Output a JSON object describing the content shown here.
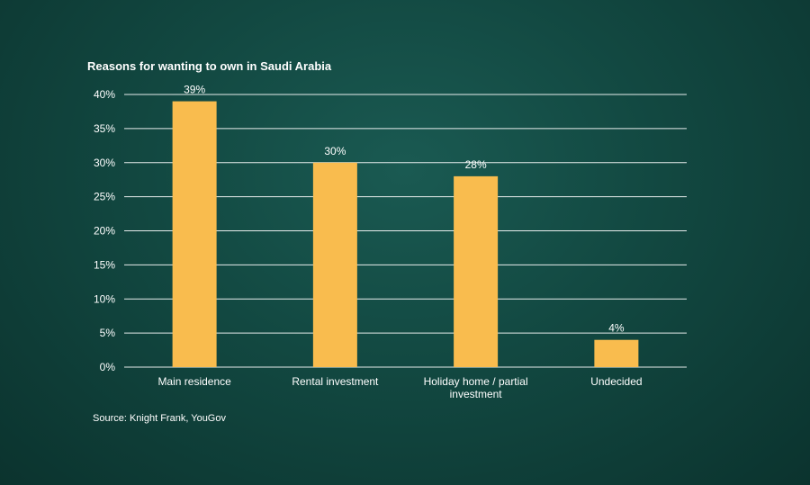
{
  "chart_data": {
    "type": "bar",
    "title": "Reasons for wanting to own in Saudi Arabia",
    "categories": [
      "Main residence",
      "Rental investment",
      "Holiday home / partial investment",
      "Undecided"
    ],
    "category_lines": [
      [
        "Main residence"
      ],
      [
        "Rental investment"
      ],
      [
        "Holiday home / partial",
        "investment"
      ],
      [
        "Undecided"
      ]
    ],
    "values": [
      39,
      30,
      28,
      4
    ],
    "value_labels": [
      "39%",
      "30%",
      "28%",
      "4%"
    ],
    "ylim": [
      0,
      40
    ],
    "yticks": [
      0,
      5,
      10,
      15,
      20,
      25,
      30,
      35,
      40
    ],
    "ytick_labels": [
      "0%",
      "5%",
      "10%",
      "15%",
      "20%",
      "25%",
      "30%",
      "35%",
      "40%"
    ],
    "xlabel": "",
    "ylabel": "",
    "grid": true,
    "bar_color": "#f9bc4e",
    "source": "Source: Knight Frank, YouGov"
  }
}
